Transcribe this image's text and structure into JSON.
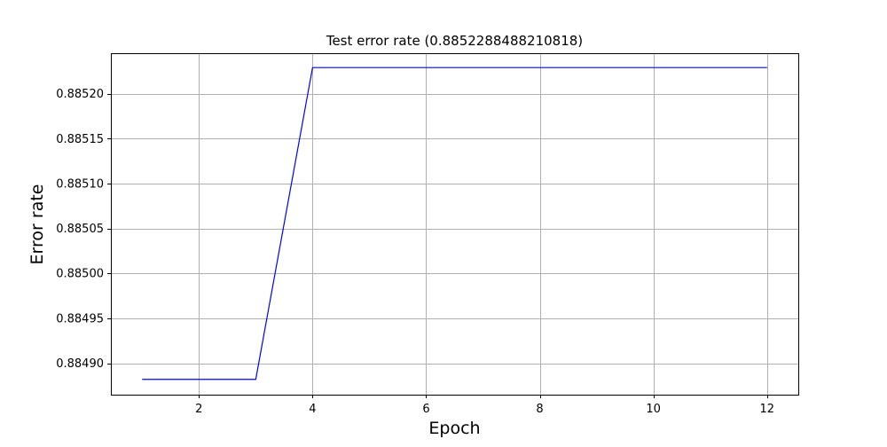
{
  "chart_data": {
    "type": "line",
    "title": "Test error rate (0.8852288488210818)",
    "xlabel": "Epoch",
    "ylabel": "Error rate",
    "grid": true,
    "xlim": [
      0.45,
      12.55
    ],
    "ylim": [
      0.884865,
      0.885245
    ],
    "x_ticks": [
      2,
      4,
      6,
      8,
      10,
      12
    ],
    "x_tick_labels": [
      "2",
      "4",
      "6",
      "8",
      "10",
      "12"
    ],
    "y_ticks": [
      0.8849,
      0.88495,
      0.885,
      0.88505,
      0.8851,
      0.88515,
      0.8852
    ],
    "y_tick_labels": [
      "0.88490",
      "0.88495",
      "0.88500",
      "0.88505",
      "0.88510",
      "0.88515",
      "0.88520"
    ],
    "series": [
      {
        "color": "#0000ff",
        "x": [
          1,
          2,
          3,
          4,
          5,
          6,
          7,
          8,
          9,
          10,
          11,
          12
        ],
        "y": [
          0.884882,
          0.884882,
          0.884882,
          0.885229,
          0.885229,
          0.885229,
          0.885229,
          0.885229,
          0.885229,
          0.885229,
          0.885229,
          0.885229
        ]
      }
    ]
  }
}
